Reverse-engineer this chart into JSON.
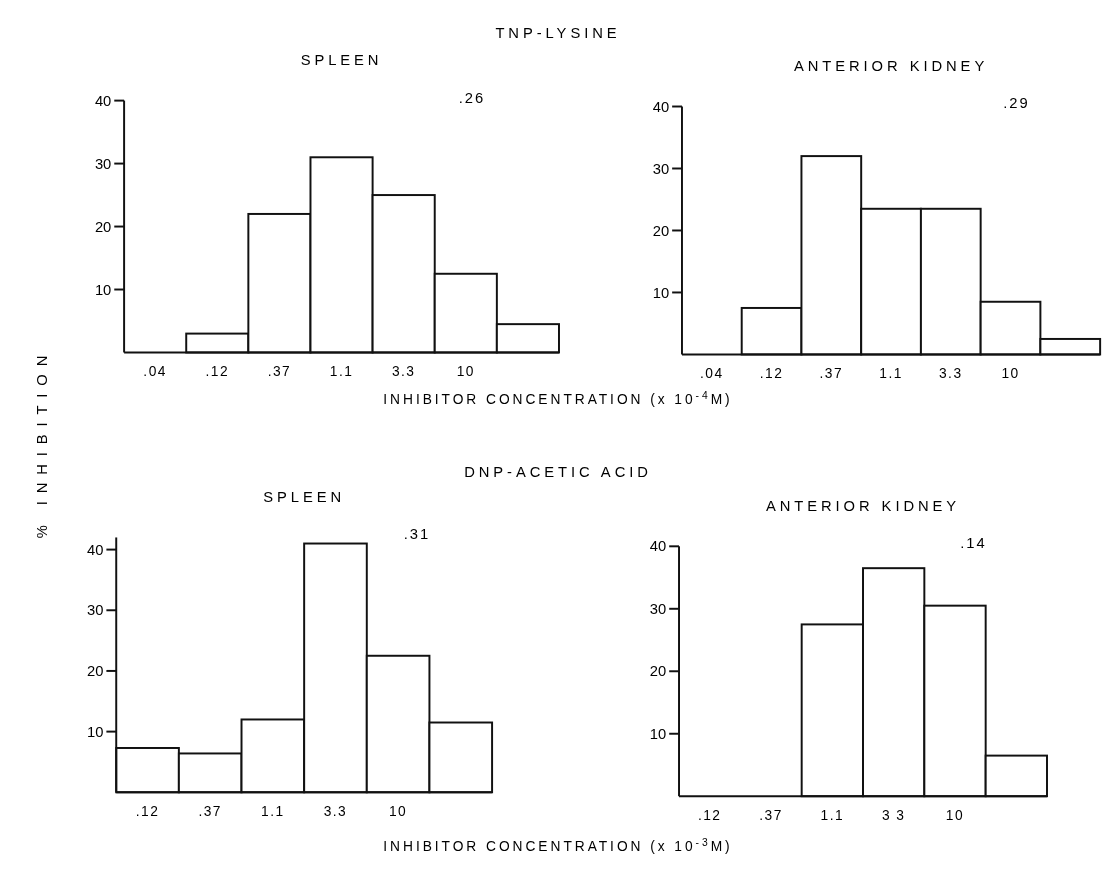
{
  "chart_data": [
    {
      "type": "bar",
      "title": "TNP-LYSINE",
      "subtitle": "SPLEEN",
      "ylabel": "% INHIBITION",
      "xlabel": "INHIBITOR CONCENTRATION (x 10$^{-4}$M)",
      "categories": [
        ".04",
        ".12",
        ".37",
        "1.1",
        "3.3",
        "10",
        null
      ],
      "values": [
        0,
        3,
        22,
        31,
        25,
        12.5,
        4.5
      ],
      "color": "#ffffff",
      "ylim": [
        0,
        40
      ],
      "yticks": [
        10,
        20,
        30,
        40
      ],
      "annotations": [
        ".26"
      ]
    },
    {
      "type": "bar",
      "subtitle": "ANTERIOR KIDNEY",
      "categories": [
        ".04",
        ".12",
        ".37",
        "1.1",
        "3.3",
        "10",
        null
      ],
      "values": [
        0,
        7.5,
        32,
        23.5,
        23.5,
        8.5,
        2.5
      ],
      "color": "#ffffff",
      "ylim": [
        0,
        40
      ],
      "yticks": [
        10,
        20,
        30,
        40
      ],
      "annotations": [
        ".29"
      ]
    },
    {
      "type": "bar",
      "title": "DNP-ACETIC ACID",
      "subtitle": "SPLEEN",
      "xlabel": "INHIBITOR CONCENTRATION (x 10$^{-3}$M)",
      "categories": [
        ".12",
        ".37",
        "1.1",
        "3.3",
        "10",
        null
      ],
      "values": [
        7.3,
        6.4,
        12,
        41,
        22.5,
        11.5
      ],
      "color": "#ffffff",
      "ylim": [
        0,
        42
      ],
      "yticks": [
        10,
        20,
        30,
        40
      ],
      "annotations": [
        ".31"
      ]
    },
    {
      "type": "bar",
      "subtitle": "ANTERIOR KIDNEY",
      "categories": [
        ".12",
        ".37",
        "1.1",
        "3 3",
        "10",
        null
      ],
      "values": [
        0,
        0,
        27.5,
        36.5,
        30.5,
        6.5
      ],
      "color": "#ffffff",
      "ylim": [
        0,
        40
      ],
      "yticks": [
        10,
        20,
        30,
        40
      ],
      "annotations": [
        ".14"
      ]
    }
  ]
}
